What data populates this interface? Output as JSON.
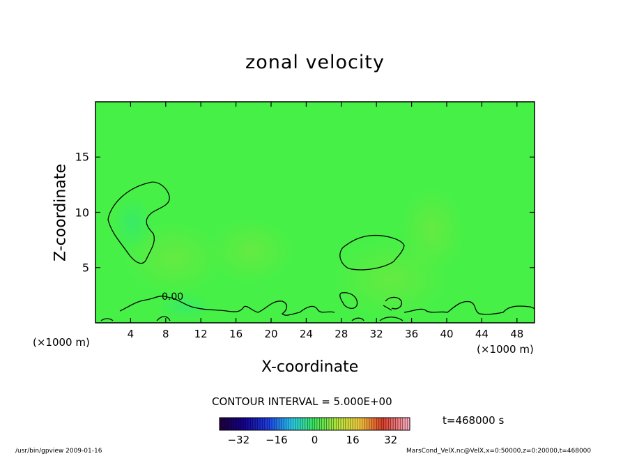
{
  "chart_data": {
    "type": "heatmap",
    "title": "zonal velocity",
    "xlabel": "X-coordinate",
    "ylabel": "Z-coordinate",
    "x_unit_label": "(×1000 m)",
    "xlim": [
      0,
      50
    ],
    "ylim": [
      0,
      20
    ],
    "x_ticks": [
      4,
      8,
      12,
      16,
      20,
      24,
      28,
      32,
      36,
      40,
      44,
      48
    ],
    "y_ticks": [
      5,
      10,
      15
    ],
    "contour_label": "0.00",
    "contour_interval_text": "CONTOUR INTERVAL = 5.000E+00",
    "time_text": "t=468000 s",
    "colorbar": {
      "range": [
        -40,
        40
      ],
      "ticks": [
        -32,
        -16,
        0,
        16,
        32
      ],
      "colormap": "rainbow"
    },
    "field_color": "#47f047"
  },
  "footer": {
    "left": "/usr/bin/gpview  2009-01-16",
    "right": "MarsCond_VelX.nc@VelX,x=0:50000,z=0:20000,t=468000"
  }
}
